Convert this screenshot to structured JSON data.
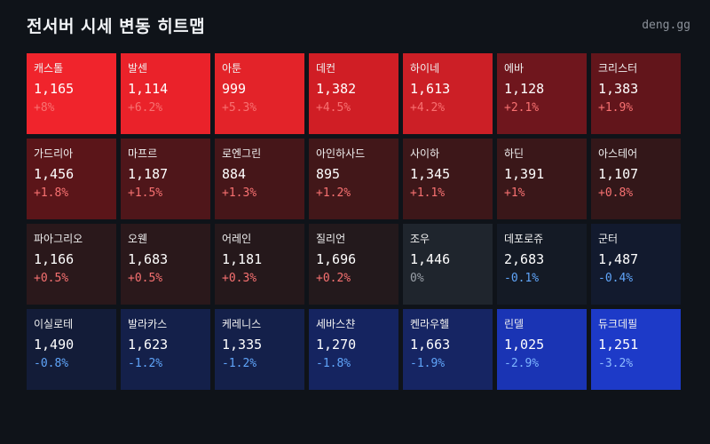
{
  "header": {
    "title": "전서버 시세 변동 히트맵",
    "site": "deng.gg"
  },
  "cells": [
    {
      "name": "캐스톨",
      "price": "1,165",
      "change": "+8%",
      "bg": "#f0242c",
      "change_color": "#f87171"
    },
    {
      "name": "발센",
      "price": "1,114",
      "change": "+6.2%",
      "bg": "#ea222a",
      "change_color": "#f87171"
    },
    {
      "name": "아툰",
      "price": "999",
      "change": "+5.3%",
      "bg": "#e32329",
      "change_color": "#f87171"
    },
    {
      "name": "데컨",
      "price": "1,382",
      "change": "+4.5%",
      "bg": "#d01e25",
      "change_color": "#f87171"
    },
    {
      "name": "하이네",
      "price": "1,613",
      "change": "+4.2%",
      "bg": "#cc1f26",
      "change_color": "#f87171"
    },
    {
      "name": "에바",
      "price": "1,128",
      "change": "+2.1%",
      "bg": "#6f161d",
      "change_color": "#f87171"
    },
    {
      "name": "크리스터",
      "price": "1,383",
      "change": "+1.9%",
      "bg": "#62151b",
      "change_color": "#f87171"
    },
    {
      "name": "가드리아",
      "price": "1,456",
      "change": "+1.8%",
      "bg": "#5b1519",
      "change_color": "#f87171"
    },
    {
      "name": "마프르",
      "price": "1,187",
      "change": "+1.5%",
      "bg": "#4f161a",
      "change_color": "#f87171"
    },
    {
      "name": "로엔그린",
      "price": "884",
      "change": "+1.3%",
      "bg": "#461619",
      "change_color": "#f87171"
    },
    {
      "name": "아인하사드",
      "price": "895",
      "change": "+1.2%",
      "bg": "#421719",
      "change_color": "#f87171"
    },
    {
      "name": "사이하",
      "price": "1,345",
      "change": "+1.1%",
      "bg": "#3d1719",
      "change_color": "#f87171"
    },
    {
      "name": "하딘",
      "price": "1,391",
      "change": "+1%",
      "bg": "#3a1719",
      "change_color": "#f87171"
    },
    {
      "name": "아스테어",
      "price": "1,107",
      "change": "+0.8%",
      "bg": "#331719",
      "change_color": "#f87171"
    },
    {
      "name": "파아그리오",
      "price": "1,166",
      "change": "+0.5%",
      "bg": "#2a181b",
      "change_color": "#f87171"
    },
    {
      "name": "오웬",
      "price": "1,683",
      "change": "+0.5%",
      "bg": "#2a181b",
      "change_color": "#f87171"
    },
    {
      "name": "어레인",
      "price": "1,181",
      "change": "+0.3%",
      "bg": "#25181b",
      "change_color": "#f87171"
    },
    {
      "name": "질리언",
      "price": "1,696",
      "change": "+0.2%",
      "bg": "#23191c",
      "change_color": "#f87171"
    },
    {
      "name": "조우",
      "price": "1,446",
      "change": "0%",
      "bg": "#1f252d",
      "change_color": "#9aa0a8"
    },
    {
      "name": "데포로쥬",
      "price": "2,683",
      "change": "-0.1%",
      "bg": "#141a25",
      "change_color": "#60a5fa"
    },
    {
      "name": "군터",
      "price": "1,487",
      "change": "-0.4%",
      "bg": "#121a2e",
      "change_color": "#60a5fa"
    },
    {
      "name": "이실로테",
      "price": "1,490",
      "change": "-0.8%",
      "bg": "#131c38",
      "change_color": "#60a5fa"
    },
    {
      "name": "발라카스",
      "price": "1,623",
      "change": "-1.2%",
      "bg": "#14204a",
      "change_color": "#60a5fa"
    },
    {
      "name": "케레니스",
      "price": "1,335",
      "change": "-1.2%",
      "bg": "#14204a",
      "change_color": "#60a5fa"
    },
    {
      "name": "세바스챤",
      "price": "1,270",
      "change": "-1.8%",
      "bg": "#152460",
      "change_color": "#60a5fa"
    },
    {
      "name": "켄라우헬",
      "price": "1,663",
      "change": "-1.9%",
      "bg": "#162563",
      "change_color": "#60a5fa"
    },
    {
      "name": "린델",
      "price": "1,025",
      "change": "-2.9%",
      "bg": "#1a34b4",
      "change_color": "#7cb4ff"
    },
    {
      "name": "듀크데필",
      "price": "1,251",
      "change": "-3.2%",
      "bg": "#1d3ac8",
      "change_color": "#8fbcff"
    }
  ]
}
